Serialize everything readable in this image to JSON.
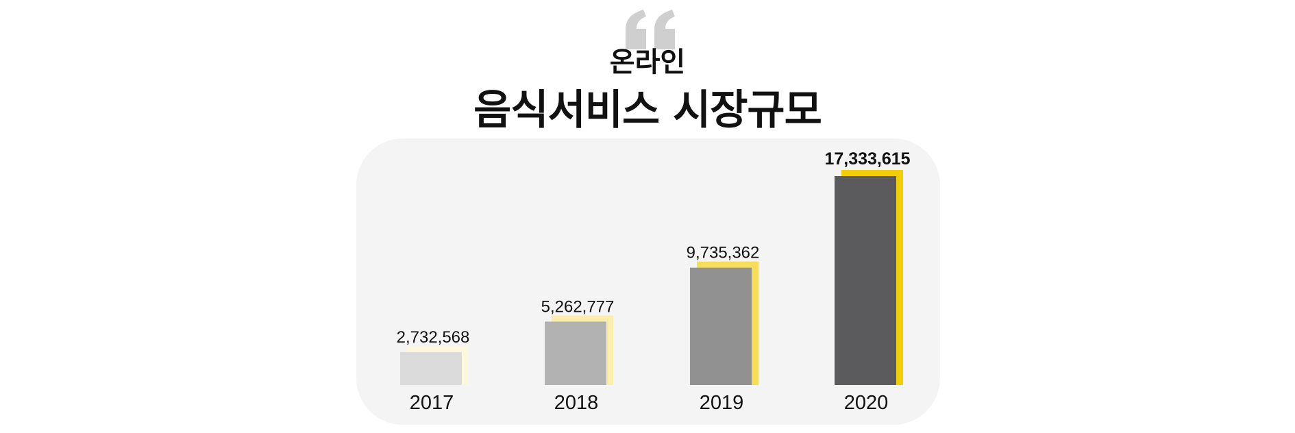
{
  "header": {
    "subtitle": "온라인",
    "title": "음식서비스 시장규모"
  },
  "icons": {
    "quote": "quote-mark-icon"
  },
  "colors": {
    "panel_bg": "#f4f4f4",
    "quote": "#cfcfcf",
    "bars": [
      "#dbdbdb",
      "#b2b2b2",
      "#919191",
      "#5b5a5c"
    ],
    "accents": [
      "#fbf8dd",
      "#fbeead",
      "#f5dc5a",
      "#f2cd09"
    ]
  },
  "chart_data": {
    "type": "bar",
    "title": "음식서비스 시장규모",
    "categories": [
      "2017",
      "2018",
      "2019",
      "2020"
    ],
    "values": [
      2732568,
      5262777,
      9735362,
      17333615
    ],
    "value_labels": [
      "2,732,568",
      "5,262,777",
      "9,735,362",
      "17,333,615"
    ],
    "highlight_index": 3,
    "ylim": [
      0,
      17333615
    ],
    "grid": false,
    "legend": "none"
  }
}
